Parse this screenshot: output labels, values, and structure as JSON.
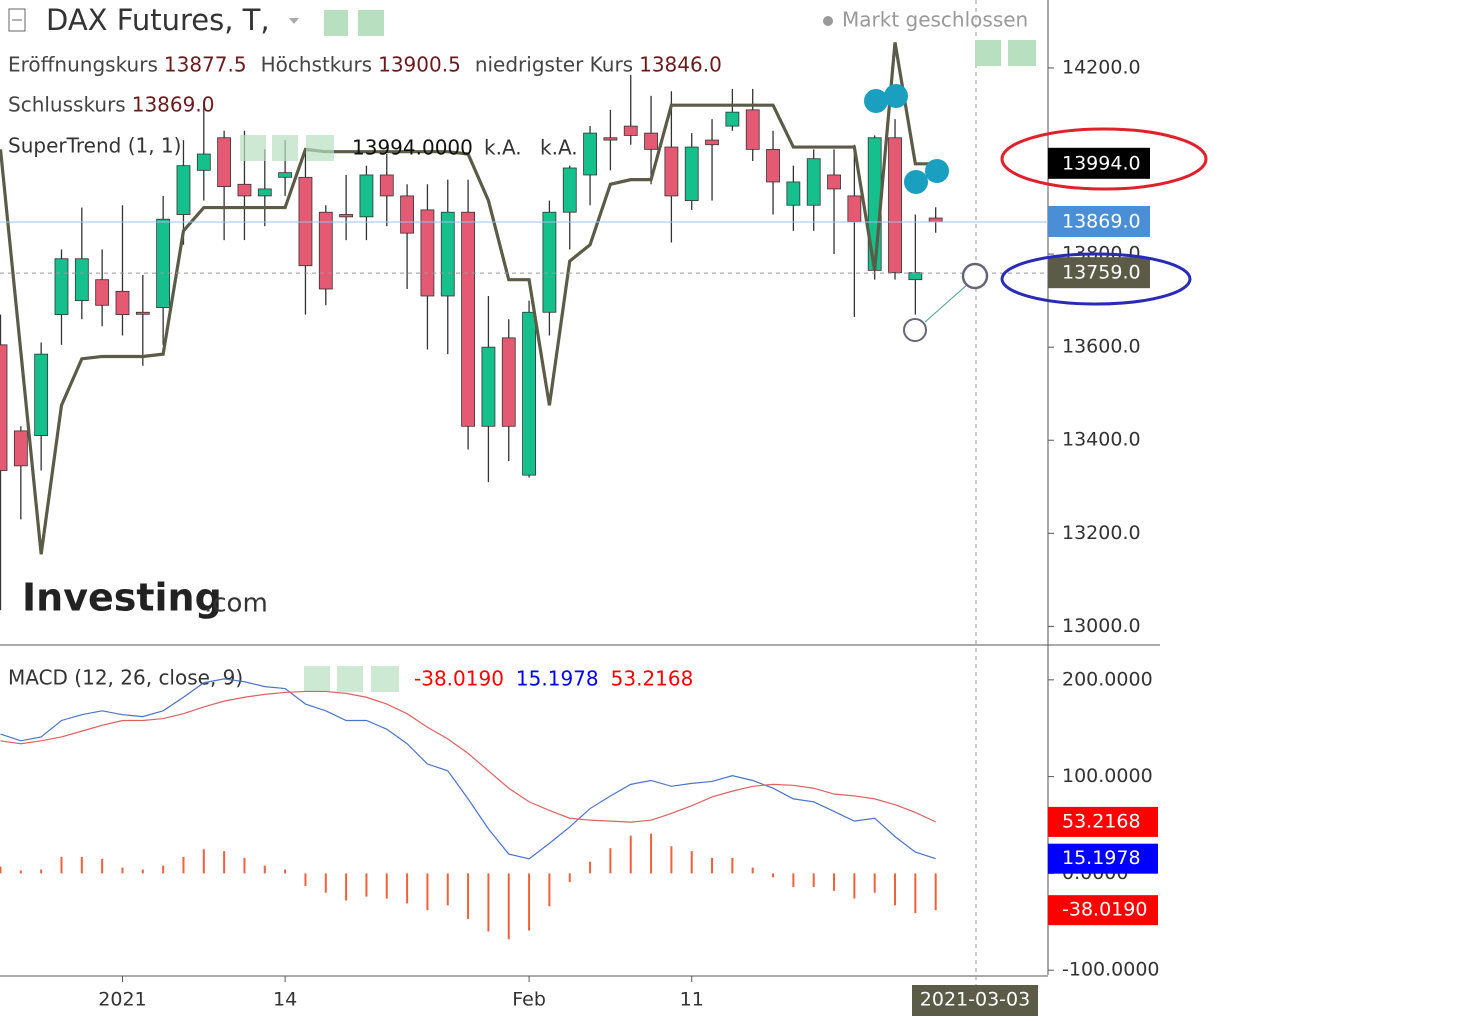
{
  "chart_data": [
    {
      "type": "candlestick",
      "title": "DAX Futures, T,",
      "status": "Markt geschlossen",
      "ohlc_legend": [
        {
          "label": "Eröffnungskurs",
          "value": "13877.5"
        },
        {
          "label": "Höchstkurs",
          "value": "13900.5"
        },
        {
          "label": "niedrigster Kurs",
          "value": "13846.0"
        },
        {
          "label": "Schlusskurs",
          "value": "13869.0"
        }
      ],
      "watermark": [
        "Investing",
        ".com"
      ],
      "categories": [
        null,
        null,
        null,
        null,
        null,
        null,
        "2021",
        null,
        null,
        null,
        null,
        null,
        null,
        null,
        "14",
        null,
        null,
        null,
        null,
        null,
        null,
        null,
        null,
        null,
        null,
        null,
        "Feb",
        null,
        null,
        null,
        null,
        null,
        null,
        null,
        "11",
        null,
        null,
        null,
        null,
        null,
        null,
        null,
        null,
        null,
        null,
        null,
        null
      ],
      "open": [
        13605,
        13420,
        13410,
        13670,
        13700,
        13745,
        13720,
        13675,
        13685,
        13885,
        13980,
        14050,
        13950,
        13925,
        13965,
        13965,
        13890,
        13885,
        13880,
        13970,
        13925,
        13895,
        13710,
        13890,
        13430,
        13620,
        13325,
        13675,
        13890,
        13970,
        14050,
        14075,
        14060,
        14030,
        13915,
        14045,
        14075,
        14110,
        14025,
        13905,
        13905,
        13970,
        13925,
        13765,
        14050,
        13745,
        13877.5
      ],
      "high": [
        13670,
        13430,
        13610,
        13810,
        13900,
        13810,
        13905,
        13755,
        13925,
        14045,
        14130,
        14065,
        14065,
        14025,
        14045,
        14025,
        13905,
        13970,
        13990,
        14015,
        13950,
        13950,
        13960,
        13960,
        13710,
        13660,
        13700,
        13915,
        13990,
        14075,
        14110,
        14185,
        14140,
        14150,
        14060,
        14090,
        14155,
        14155,
        14065,
        13990,
        14025,
        14025,
        14035,
        14055,
        14090,
        13885,
        13900.5
      ],
      "low": [
        13035,
        13230,
        13335,
        13605,
        13660,
        13645,
        13625,
        13560,
        13605,
        13820,
        13915,
        13830,
        13830,
        13860,
        13925,
        13670,
        13690,
        13830,
        13830,
        13860,
        13725,
        13595,
        13585,
        13380,
        13310,
        13355,
        13320,
        13625,
        13810,
        13905,
        13980,
        14035,
        13950,
        13825,
        13895,
        13915,
        14065,
        14000,
        13885,
        13850,
        13850,
        13800,
        13665,
        13745,
        13745,
        13670,
        13846
      ],
      "close": [
        13335,
        13345,
        13585,
        13790,
        13790,
        13690,
        13670,
        13672,
        13875,
        13990,
        14015,
        13945,
        13925,
        13940,
        13975,
        13775,
        13725,
        13880,
        13970,
        13925,
        13845,
        13710,
        13890,
        13430,
        13600,
        13430,
        13675,
        13890,
        13985,
        14060,
        14045,
        14055,
        14025,
        13925,
        14030,
        14035,
        14105,
        14025,
        13955,
        13955,
        14005,
        13940,
        13870,
        14050,
        13760,
        13760,
        13869
      ],
      "up_color": "#16c08d",
      "down_color": "#e45a73",
      "overlay": {
        "name": "SuperTrend (1, 1)",
        "readout": [
          "13994.0000",
          "k.A.",
          "k.A."
        ],
        "color": "#5b5b47",
        "values": [
          14025,
          13590,
          13155,
          13475,
          13575,
          13580,
          13580,
          13580,
          13585,
          13850,
          13900,
          13900,
          13900,
          13900,
          13900,
          14025,
          14020,
          14020,
          14020,
          14020,
          14020,
          14020,
          14020,
          14015,
          13915,
          13745,
          13745,
          13475,
          13785,
          13820,
          13950,
          13960,
          13960,
          14120,
          14120,
          14120,
          14120,
          14120,
          14120,
          14030,
          14030,
          14030,
          14030,
          13765,
          14255,
          13994,
          13994
        ]
      },
      "ylim": [
        12960,
        14346
      ],
      "yticks": [
        {
          "value": 13000,
          "label": "13000.0"
        },
        {
          "value": 13200,
          "label": "13200.0"
        },
        {
          "value": 13400,
          "label": "13400.0"
        },
        {
          "value": 13600,
          "label": "13600.0"
        },
        {
          "value": 13800,
          "label": "13800.0"
        },
        {
          "value": 14000,
          "label": "14000.0"
        },
        {
          "value": 14200,
          "label": "14200.0"
        }
      ],
      "badges": [
        {
          "value": 13994,
          "label": "13994.0",
          "color": "#000000"
        },
        {
          "value": 13869,
          "label": "13869.0",
          "color": "#4a8fd6"
        },
        {
          "value": 13759,
          "label": "13759.0",
          "color": "#5b5b47"
        }
      ],
      "crosshair": {
        "x_label": "2021-03-03"
      }
    },
    {
      "type": "macd",
      "title": "MACD (12, 26, close, 9)",
      "readout": [
        {
          "value": -38.019,
          "label": "-38.0190",
          "color": "#ff0000"
        },
        {
          "value": 15.1978,
          "label": "15.1978",
          "color": "#0000ff"
        },
        {
          "value": 53.2168,
          "label": "53.2168",
          "color": "#ff0000"
        }
      ],
      "series": [
        {
          "color": "#4a74c9",
          "values": [
            144,
            137,
            141,
            158,
            164,
            168,
            164,
            162,
            168,
            182,
            197,
            201,
            198,
            193,
            191,
            175,
            168,
            158,
            158,
            149,
            134,
            113,
            106,
            77,
            46,
            20,
            15,
            31,
            48,
            67,
            80,
            92,
            96,
            90,
            93,
            95,
            101,
            96,
            88,
            77,
            74,
            64,
            54,
            57,
            38,
            22,
            15.1978
          ]
        },
        {
          "color": "#e06060",
          "values": [
            137,
            134,
            137,
            141,
            147,
            153,
            158,
            158,
            160,
            165,
            172,
            178,
            182,
            185,
            187,
            188,
            188,
            186,
            182,
            175,
            165,
            151,
            139,
            124,
            106,
            88,
            74,
            65,
            57,
            55,
            54,
            53,
            55,
            62,
            70,
            79,
            85,
            90,
            92,
            91,
            88,
            82,
            80,
            77,
            71,
            63,
            53.2168
          ]
        }
      ],
      "histogram": {
        "color": "#f0603a",
        "values": [
          7,
          3,
          4,
          17,
          17,
          15,
          6,
          4,
          8,
          17,
          25,
          23,
          16,
          8,
          4,
          -13,
          -20,
          -28,
          -24,
          -26,
          -31,
          -38,
          -33,
          -47,
          -60,
          -68,
          -59,
          -34,
          -9,
          12,
          26,
          39,
          41,
          28,
          23,
          16,
          16,
          6,
          -4,
          -14,
          -14,
          -18,
          -26,
          -20,
          -33,
          -41,
          -38.019
        ]
      },
      "ylim": [
        -105,
        236
      ],
      "yticks": [
        {
          "value": -100,
          "label": "-100.0000"
        },
        {
          "value": 0,
          "label": "0.0000"
        },
        {
          "value": 100,
          "label": "100.0000"
        },
        {
          "value": 200,
          "label": "200.0000"
        }
      ]
    }
  ]
}
